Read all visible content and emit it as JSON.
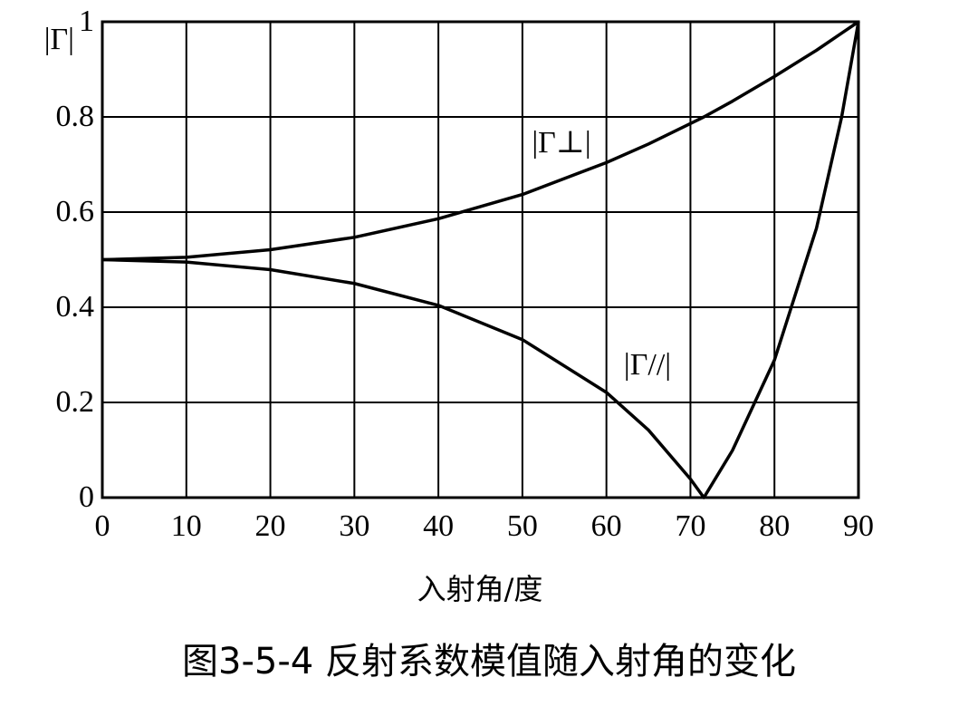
{
  "chart_data": {
    "type": "line",
    "x": [
      0,
      10,
      20,
      30,
      40,
      50,
      60,
      65,
      70,
      71.6,
      75,
      80,
      85,
      88,
      90
    ],
    "series": [
      {
        "name": "|Γ⊥|",
        "color": "#000000",
        "values": [
          0.5,
          0.505,
          0.521,
          0.547,
          0.586,
          0.637,
          0.704,
          0.743,
          0.786,
          0.8,
          0.833,
          0.885,
          0.94,
          0.976,
          1
        ]
      },
      {
        "name": "|Γ//|",
        "color": "#000000",
        "values": [
          0.5,
          0.495,
          0.479,
          0.45,
          0.404,
          0.332,
          0.221,
          0.142,
          0.039,
          0,
          0.099,
          0.289,
          0.566,
          0.8,
          1
        ]
      }
    ],
    "xlim": [
      0,
      90
    ],
    "xticks": [
      0,
      10,
      20,
      30,
      40,
      50,
      60,
      70,
      80,
      90
    ],
    "ylim": [
      0,
      1
    ],
    "yticks": [
      0,
      0.2,
      0.4,
      0.6,
      0.8,
      1
    ],
    "y_label": "|Γ|",
    "x_label": "入射角/度",
    "caption": "图3-5-4  反射系数模值随入射角的变化",
    "grid": true
  }
}
